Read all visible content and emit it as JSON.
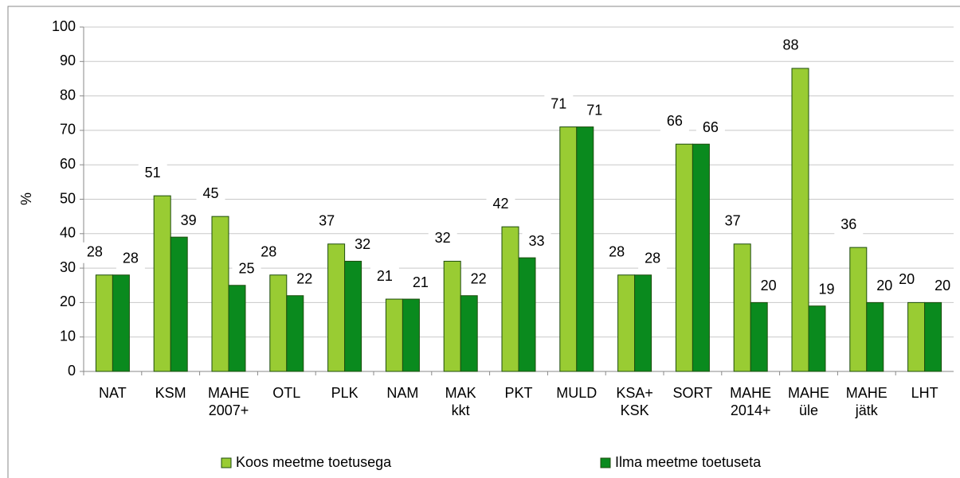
{
  "chart_data": {
    "type": "bar",
    "y_label": "%",
    "categories": [
      "NAT",
      "KSM",
      "MAHE\n2007+",
      "OTL",
      "PLK",
      "NAM",
      "MAK\nkkt",
      "PKT",
      "MULD",
      "KSA+\nKSK",
      "SORT",
      "MAHE\n2014+",
      "MAHE\nüle",
      "MAHE\njätk",
      "LHT"
    ],
    "series": [
      {
        "name": "Koos meetme toetusega",
        "color": "#99cc33",
        "values": [
          28,
          51,
          45,
          28,
          37,
          21,
          32,
          42,
          71,
          28,
          66,
          37,
          88,
          36,
          20
        ]
      },
      {
        "name": "Ilma meetme toetuseta",
        "color": "#0a8a1e",
        "values": [
          28,
          39,
          25,
          22,
          32,
          21,
          22,
          33,
          71,
          28,
          66,
          20,
          19,
          20,
          20
        ]
      }
    ],
    "ylim": [
      0,
      100
    ],
    "yticks": [
      0,
      10,
      20,
      30,
      40,
      50,
      60,
      70,
      80,
      90,
      100
    ],
    "grid": true,
    "legend": "bottom"
  }
}
